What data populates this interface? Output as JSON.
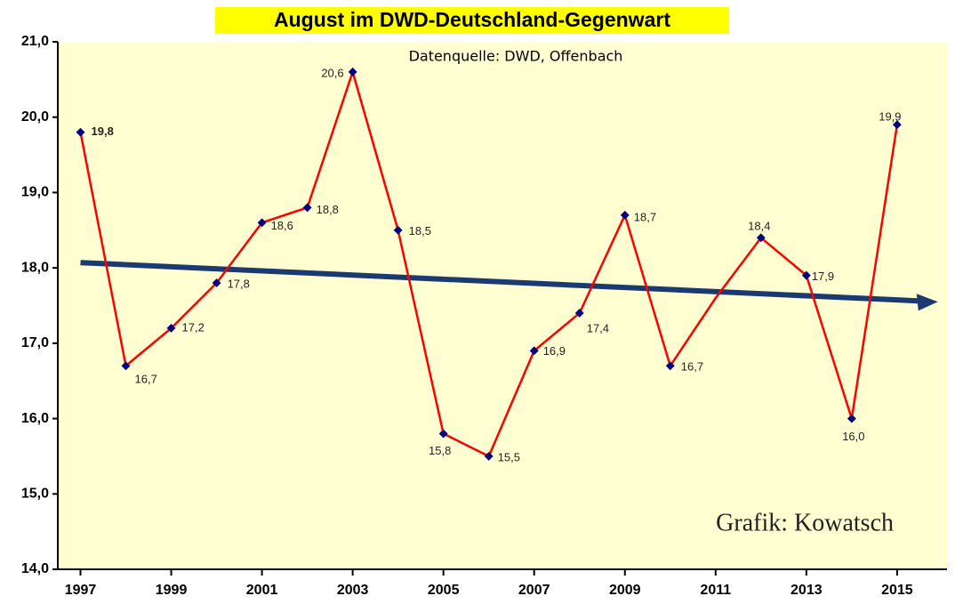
{
  "chart_data": {
    "type": "line",
    "title": "August im DWD-Deutschland-Gegenwart",
    "subtitle": "Datenquelle: DWD, Offenbach",
    "annotation": "Grafik: Kowatsch",
    "x": [
      1997,
      1998,
      1999,
      2000,
      2001,
      2002,
      2003,
      2004,
      2005,
      2006,
      2007,
      2008,
      2009,
      2010,
      2011,
      2012,
      2013,
      2014,
      2015
    ],
    "series": [
      {
        "color": "#ff0000",
        "marker_color": "#000080",
        "values": [
          19.8,
          16.7,
          17.2,
          17.8,
          18.6,
          18.8,
          20.6,
          18.5,
          15.8,
          15.5,
          16.9,
          17.4,
          18.7,
          16.7,
          17.6,
          18.4,
          17.9,
          16.0,
          19.9
        ],
        "value_labels": [
          "19,8",
          "16,7",
          "17,2",
          "17,8",
          "18,6",
          "18,8",
          "20,6",
          "18,5",
          "15,8",
          "15,5",
          "16,9",
          "17,4",
          "18,7",
          "16,7",
          null,
          "18,4",
          "17,9",
          "16,0",
          "19,9"
        ]
      }
    ],
    "trend": {
      "color": "#1b3a72",
      "x": [
        1997,
        2015.9
      ],
      "values": [
        18.07,
        17.55
      ]
    },
    "xlim": [
      1996.5,
      2016.1
    ],
    "xticks": [
      1997,
      1999,
      2001,
      2003,
      2005,
      2007,
      2009,
      2011,
      2013,
      2015
    ],
    "ylim": [
      14,
      21
    ],
    "yticks": [
      {
        "value": 14,
        "label": "14,0"
      },
      {
        "value": 15,
        "label": "15,0"
      },
      {
        "value": 16,
        "label": "16,0"
      },
      {
        "value": 17,
        "label": "17,0"
      },
      {
        "value": 18,
        "label": "18,0"
      },
      {
        "value": 19,
        "label": "19,0"
      },
      {
        "value": 20,
        "label": "20,0"
      },
      {
        "value": 21,
        "label": "21,0"
      }
    ],
    "background": "#ffffd2"
  }
}
